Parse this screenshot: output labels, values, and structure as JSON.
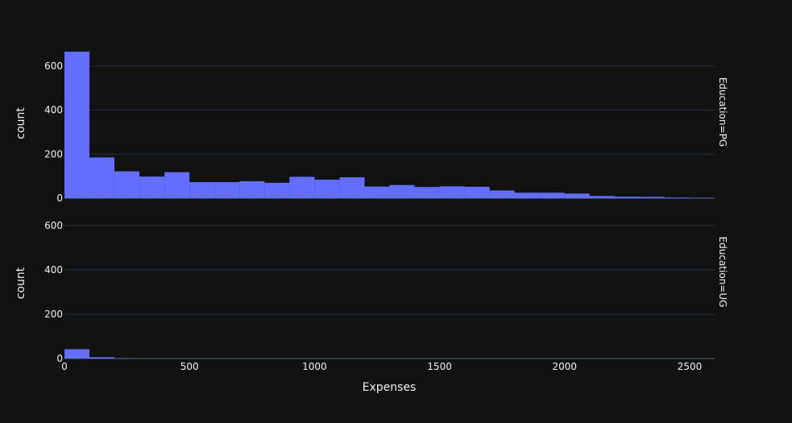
{
  "chart_data": {
    "type": "bar",
    "xlabel": "Expenses",
    "ylabel": "count",
    "bin_width": 100,
    "xlim": [
      0,
      2600
    ],
    "ylim": [
      0,
      680
    ],
    "x_ticks": [
      0,
      500,
      1000,
      1500,
      2000,
      2500
    ],
    "y_ticks": [
      0,
      200,
      400,
      600
    ],
    "bar_color": "#636efa",
    "background_color": "#111111",
    "grid_color": "#283442",
    "grid": true,
    "facets": [
      {
        "label": "Education=PG",
        "bin_starts": [
          0,
          100,
          200,
          300,
          400,
          500,
          600,
          700,
          800,
          900,
          1000,
          1100,
          1200,
          1300,
          1400,
          1500,
          1600,
          1700,
          1800,
          1900,
          2000,
          2100,
          2200,
          2300,
          2400,
          2500
        ],
        "values": [
          665,
          185,
          122,
          98,
          118,
          73,
          73,
          77,
          70,
          97,
          84,
          95,
          53,
          60,
          51,
          54,
          52,
          35,
          25,
          25,
          21,
          10,
          7,
          6,
          3,
          2
        ]
      },
      {
        "label": "Education=UG",
        "bin_starts": [
          0,
          100,
          200,
          300,
          400,
          500,
          600,
          700,
          800,
          900,
          1000,
          1100,
          1200,
          1300,
          1400,
          1500,
          1600,
          1700,
          1800,
          1900,
          2000,
          2100,
          2200,
          2300,
          2400,
          2500
        ],
        "values": [
          42,
          6,
          1,
          0,
          0,
          0,
          0,
          0,
          0,
          0,
          0,
          0,
          0,
          0,
          0,
          0,
          0,
          0,
          0,
          0,
          0,
          0,
          0,
          0,
          0,
          0
        ]
      }
    ]
  }
}
